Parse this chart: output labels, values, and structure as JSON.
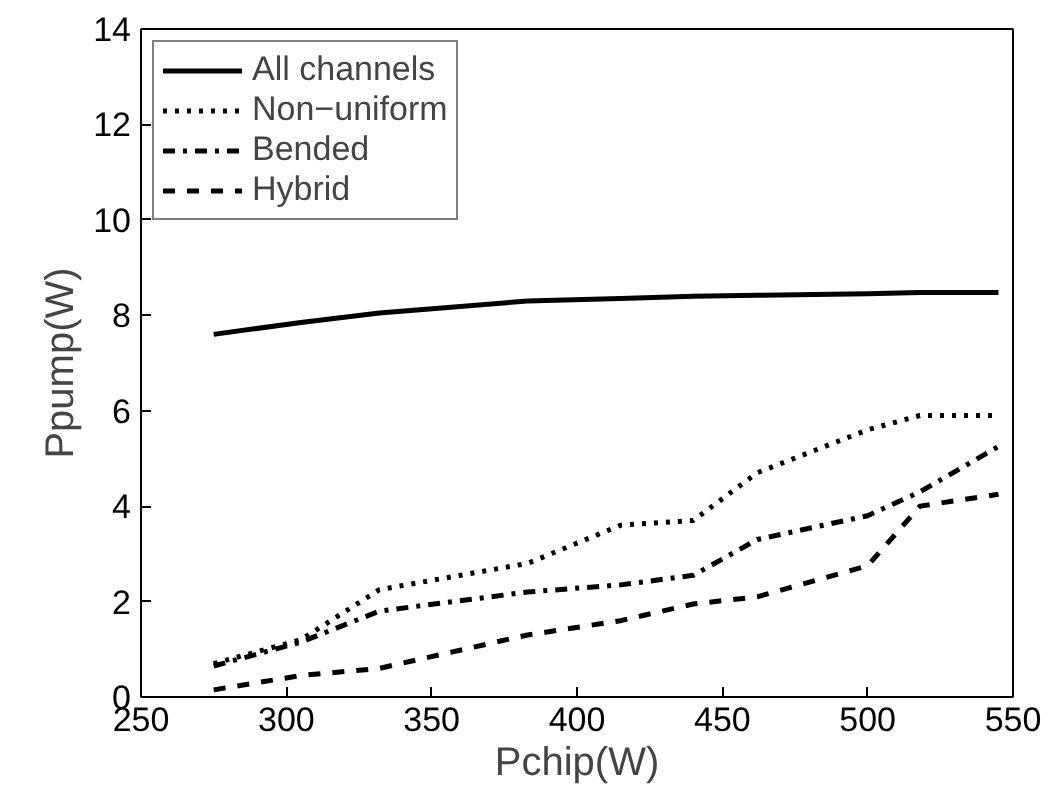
{
  "chart_data": {
    "type": "line",
    "xlabel": "Pchip(W)",
    "ylabel": "Ppump(W)",
    "x": [
      275,
      305,
      332,
      383,
      415,
      440,
      462,
      500,
      518,
      545
    ],
    "series": [
      {
        "name": "All channels",
        "color": "#000000",
        "line_style": "solid",
        "values": [
          7.6,
          7.85,
          8.05,
          8.3,
          8.35,
          8.4,
          8.42,
          8.45,
          8.48,
          8.48
        ]
      },
      {
        "name": "Non−uniform",
        "color": "#000000",
        "line_style": "dotted",
        "values": [
          0.7,
          1.2,
          2.25,
          2.8,
          3.6,
          3.7,
          4.7,
          5.6,
          5.9,
          5.9
        ]
      },
      {
        "name": "Bended",
        "color": "#000000",
        "line_style": "dashdot",
        "values": [
          0.65,
          1.15,
          1.8,
          2.2,
          2.35,
          2.55,
          3.3,
          3.8,
          4.3,
          5.25
        ]
      },
      {
        "name": "Hybrid",
        "color": "#000000",
        "line_style": "dashed",
        "values": [
          0.15,
          0.45,
          0.6,
          1.3,
          1.6,
          1.95,
          2.1,
          2.75,
          4.0,
          4.25
        ]
      }
    ],
    "xlim": [
      250,
      550
    ],
    "xticks": [
      250,
      300,
      350,
      400,
      450,
      500,
      550
    ],
    "ylim": [
      0,
      14
    ],
    "yticks": [
      0,
      2,
      4,
      6,
      8,
      10,
      12,
      14
    ],
    "grid": false,
    "legend": "top left",
    "marker": "none"
  }
}
